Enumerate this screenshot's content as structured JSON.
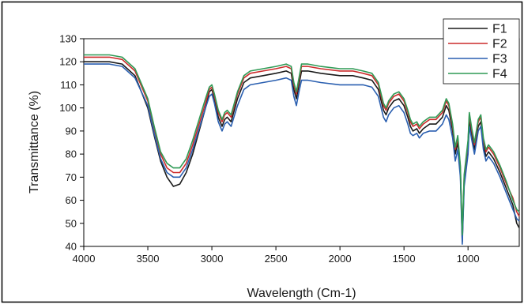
{
  "chart_data": {
    "type": "line",
    "xlabel": "Wavelength (Cm-1)",
    "ylabel": "Transmittance (%)",
    "xlim": [
      4000,
      600
    ],
    "ylim": [
      40,
      130
    ],
    "x_ticks": [
      "4000",
      "3500",
      "3000",
      "2500",
      "2000",
      "1500",
      "1000"
    ],
    "y_ticks": [
      "40",
      "50",
      "60",
      "70",
      "80",
      "90",
      "100",
      "110",
      "120",
      "130"
    ],
    "legend_position": "top-right",
    "grid": false,
    "series": [
      {
        "name": "F1",
        "color": "#1a1a1a",
        "points": [
          [
            4000,
            120
          ],
          [
            3800,
            120
          ],
          [
            3700,
            119
          ],
          [
            3600,
            114
          ],
          [
            3500,
            100
          ],
          [
            3450,
            88
          ],
          [
            3400,
            77
          ],
          [
            3350,
            70
          ],
          [
            3300,
            66
          ],
          [
            3250,
            67
          ],
          [
            3200,
            72
          ],
          [
            3150,
            80
          ],
          [
            3100,
            90
          ],
          [
            3050,
            100
          ],
          [
            3020,
            107
          ],
          [
            3000,
            108
          ],
          [
            2980,
            104
          ],
          [
            2950,
            96
          ],
          [
            2920,
            92
          ],
          [
            2900,
            95
          ],
          [
            2880,
            96
          ],
          [
            2850,
            94
          ],
          [
            2800,
            104
          ],
          [
            2750,
            111
          ],
          [
            2700,
            113
          ],
          [
            2600,
            114
          ],
          [
            2500,
            115
          ],
          [
            2420,
            116
          ],
          [
            2380,
            115
          ],
          [
            2360,
            108
          ],
          [
            2340,
            104
          ],
          [
            2320,
            110
          ],
          [
            2300,
            116
          ],
          [
            2250,
            116
          ],
          [
            2150,
            115
          ],
          [
            2000,
            114
          ],
          [
            1900,
            114
          ],
          [
            1820,
            113
          ],
          [
            1750,
            112
          ],
          [
            1700,
            108
          ],
          [
            1660,
            99
          ],
          [
            1640,
            97
          ],
          [
            1620,
            100
          ],
          [
            1580,
            103
          ],
          [
            1540,
            104
          ],
          [
            1500,
            101
          ],
          [
            1470,
            96
          ],
          [
            1450,
            92
          ],
          [
            1430,
            90
          ],
          [
            1400,
            91
          ],
          [
            1380,
            89
          ],
          [
            1350,
            91
          ],
          [
            1300,
            93
          ],
          [
            1250,
            93
          ],
          [
            1200,
            96
          ],
          [
            1170,
            101
          ],
          [
            1150,
            99
          ],
          [
            1120,
            90
          ],
          [
            1100,
            80
          ],
          [
            1080,
            85
          ],
          [
            1060,
            72
          ],
          [
            1045,
            42
          ],
          [
            1030,
            68
          ],
          [
            1000,
            83
          ],
          [
            990,
            95
          ],
          [
            970,
            88
          ],
          [
            950,
            82
          ],
          [
            920,
            92
          ],
          [
            900,
            94
          ],
          [
            880,
            84
          ],
          [
            860,
            79
          ],
          [
            840,
            81
          ],
          [
            800,
            78
          ],
          [
            750,
            72
          ],
          [
            700,
            65
          ],
          [
            650,
            58
          ],
          [
            620,
            50
          ],
          [
            600,
            48
          ]
        ]
      },
      {
        "name": "F2",
        "color": "#cc2b2b",
        "points": [
          [
            4000,
            122
          ],
          [
            3800,
            122
          ],
          [
            3700,
            121
          ],
          [
            3600,
            116
          ],
          [
            3500,
            103
          ],
          [
            3450,
            91
          ],
          [
            3400,
            80
          ],
          [
            3350,
            74
          ],
          [
            3300,
            72
          ],
          [
            3250,
            72
          ],
          [
            3200,
            76
          ],
          [
            3150,
            84
          ],
          [
            3100,
            93
          ],
          [
            3050,
            102
          ],
          [
            3020,
            108
          ],
          [
            3000,
            109
          ],
          [
            2980,
            105
          ],
          [
            2950,
            98
          ],
          [
            2920,
            94
          ],
          [
            2900,
            97
          ],
          [
            2880,
            98
          ],
          [
            2850,
            96
          ],
          [
            2800,
            106
          ],
          [
            2750,
            113
          ],
          [
            2700,
            115
          ],
          [
            2600,
            116
          ],
          [
            2500,
            117
          ],
          [
            2420,
            118
          ],
          [
            2380,
            117
          ],
          [
            2360,
            110
          ],
          [
            2340,
            106
          ],
          [
            2320,
            112
          ],
          [
            2300,
            118
          ],
          [
            2250,
            118
          ],
          [
            2150,
            117
          ],
          [
            2000,
            116
          ],
          [
            1900,
            116
          ],
          [
            1820,
            115
          ],
          [
            1750,
            114
          ],
          [
            1700,
            110
          ],
          [
            1660,
            101
          ],
          [
            1640,
            99
          ],
          [
            1620,
            102
          ],
          [
            1580,
            105
          ],
          [
            1540,
            106
          ],
          [
            1500,
            103
          ],
          [
            1470,
            98
          ],
          [
            1450,
            94
          ],
          [
            1430,
            92
          ],
          [
            1400,
            93
          ],
          [
            1380,
            91
          ],
          [
            1350,
            93
          ],
          [
            1300,
            95
          ],
          [
            1250,
            95
          ],
          [
            1200,
            98
          ],
          [
            1170,
            103
          ],
          [
            1150,
            101
          ],
          [
            1120,
            92
          ],
          [
            1100,
            82
          ],
          [
            1080,
            87
          ],
          [
            1060,
            74
          ],
          [
            1045,
            44
          ],
          [
            1030,
            70
          ],
          [
            1000,
            85
          ],
          [
            990,
            97
          ],
          [
            970,
            90
          ],
          [
            950,
            84
          ],
          [
            920,
            94
          ],
          [
            900,
            96
          ],
          [
            880,
            86
          ],
          [
            860,
            81
          ],
          [
            840,
            83
          ],
          [
            800,
            80
          ],
          [
            750,
            74
          ],
          [
            700,
            67
          ],
          [
            650,
            61
          ],
          [
            620,
            55
          ],
          [
            600,
            53
          ]
        ]
      },
      {
        "name": "F3",
        "color": "#2a5fb0",
        "points": [
          [
            4000,
            119
          ],
          [
            3800,
            119
          ],
          [
            3700,
            118
          ],
          [
            3600,
            113
          ],
          [
            3500,
            101
          ],
          [
            3450,
            89
          ],
          [
            3400,
            78
          ],
          [
            3350,
            72
          ],
          [
            3300,
            70
          ],
          [
            3250,
            70
          ],
          [
            3200,
            74
          ],
          [
            3150,
            82
          ],
          [
            3100,
            91
          ],
          [
            3050,
            100
          ],
          [
            3020,
            105
          ],
          [
            3000,
            106
          ],
          [
            2980,
            102
          ],
          [
            2950,
            94
          ],
          [
            2920,
            90
          ],
          [
            2900,
            93
          ],
          [
            2880,
            94
          ],
          [
            2850,
            92
          ],
          [
            2800,
            101
          ],
          [
            2750,
            108
          ],
          [
            2700,
            110
          ],
          [
            2600,
            111
          ],
          [
            2500,
            112
          ],
          [
            2420,
            113
          ],
          [
            2380,
            112
          ],
          [
            2360,
            105
          ],
          [
            2340,
            101
          ],
          [
            2320,
            107
          ],
          [
            2300,
            112
          ],
          [
            2250,
            112
          ],
          [
            2150,
            111
          ],
          [
            2000,
            110
          ],
          [
            1900,
            110
          ],
          [
            1820,
            110
          ],
          [
            1750,
            109
          ],
          [
            1700,
            105
          ],
          [
            1660,
            96
          ],
          [
            1640,
            94
          ],
          [
            1620,
            97
          ],
          [
            1580,
            100
          ],
          [
            1540,
            101
          ],
          [
            1500,
            98
          ],
          [
            1470,
            93
          ],
          [
            1450,
            89
          ],
          [
            1430,
            88
          ],
          [
            1400,
            89
          ],
          [
            1380,
            87
          ],
          [
            1350,
            89
          ],
          [
            1300,
            90
          ],
          [
            1250,
            90
          ],
          [
            1200,
            93
          ],
          [
            1170,
            97
          ],
          [
            1150,
            95
          ],
          [
            1120,
            87
          ],
          [
            1100,
            77
          ],
          [
            1080,
            82
          ],
          [
            1060,
            70
          ],
          [
            1045,
            41
          ],
          [
            1030,
            66
          ],
          [
            1000,
            80
          ],
          [
            990,
            92
          ],
          [
            970,
            86
          ],
          [
            950,
            80
          ],
          [
            920,
            90
          ],
          [
            900,
            92
          ],
          [
            880,
            82
          ],
          [
            860,
            77
          ],
          [
            840,
            79
          ],
          [
            800,
            76
          ],
          [
            750,
            70
          ],
          [
            700,
            63
          ],
          [
            650,
            56
          ],
          [
            620,
            52
          ],
          [
            600,
            51
          ]
        ]
      },
      {
        "name": "F4",
        "color": "#2f9a55",
        "points": [
          [
            4000,
            123
          ],
          [
            3800,
            123
          ],
          [
            3700,
            122
          ],
          [
            3600,
            117
          ],
          [
            3500,
            104
          ],
          [
            3450,
            92
          ],
          [
            3400,
            81
          ],
          [
            3350,
            76
          ],
          [
            3300,
            74
          ],
          [
            3250,
            74
          ],
          [
            3200,
            78
          ],
          [
            3150,
            86
          ],
          [
            3100,
            95
          ],
          [
            3050,
            104
          ],
          [
            3020,
            109
          ],
          [
            3000,
            110
          ],
          [
            2980,
            106
          ],
          [
            2950,
            99
          ],
          [
            2920,
            95
          ],
          [
            2900,
            98
          ],
          [
            2880,
            99
          ],
          [
            2850,
            97
          ],
          [
            2800,
            107
          ],
          [
            2750,
            114
          ],
          [
            2700,
            116
          ],
          [
            2600,
            117
          ],
          [
            2500,
            118
          ],
          [
            2420,
            119
          ],
          [
            2380,
            118
          ],
          [
            2360,
            111
          ],
          [
            2340,
            107
          ],
          [
            2320,
            113
          ],
          [
            2300,
            119
          ],
          [
            2250,
            119
          ],
          [
            2150,
            118
          ],
          [
            2000,
            117
          ],
          [
            1900,
            117
          ],
          [
            1820,
            116
          ],
          [
            1750,
            115
          ],
          [
            1700,
            111
          ],
          [
            1660,
            102
          ],
          [
            1640,
            100
          ],
          [
            1620,
            103
          ],
          [
            1580,
            106
          ],
          [
            1540,
            107
          ],
          [
            1500,
            104
          ],
          [
            1470,
            99
          ],
          [
            1450,
            95
          ],
          [
            1430,
            93
          ],
          [
            1400,
            94
          ],
          [
            1380,
            92
          ],
          [
            1350,
            94
          ],
          [
            1300,
            96
          ],
          [
            1250,
            96
          ],
          [
            1200,
            99
          ],
          [
            1170,
            104
          ],
          [
            1150,
            102
          ],
          [
            1120,
            93
          ],
          [
            1100,
            83
          ],
          [
            1080,
            88
          ],
          [
            1060,
            75
          ],
          [
            1045,
            45
          ],
          [
            1030,
            71
          ],
          [
            1000,
            86
          ],
          [
            990,
            98
          ],
          [
            970,
            91
          ],
          [
            950,
            85
          ],
          [
            920,
            95
          ],
          [
            900,
            97
          ],
          [
            880,
            87
          ],
          [
            860,
            82
          ],
          [
            840,
            84
          ],
          [
            800,
            81
          ],
          [
            750,
            75
          ],
          [
            700,
            68
          ],
          [
            650,
            60
          ],
          [
            620,
            56
          ],
          [
            600,
            55
          ]
        ]
      }
    ]
  }
}
